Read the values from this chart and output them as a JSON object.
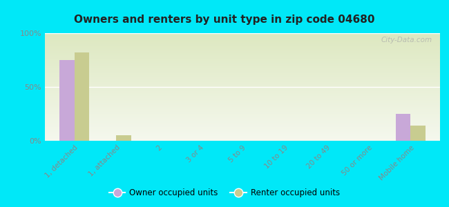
{
  "title": "Owners and renters by unit type in zip code 04680",
  "categories": [
    "1, detached",
    "1, attached",
    "2",
    "3 or 4",
    "5 to 9",
    "10 to 19",
    "20 to 49",
    "50 or more",
    "Mobile home"
  ],
  "owner_values": [
    75,
    0,
    0,
    0,
    0,
    0,
    0,
    0,
    25
  ],
  "renter_values": [
    82,
    5,
    0,
    0,
    0,
    0,
    0,
    0,
    14
  ],
  "owner_color": "#c8a8d8",
  "renter_color": "#c8cc90",
  "background_outer": "#00e8f8",
  "background_plot_top": "#dde8c0",
  "background_plot_bottom": "#f5f8ee",
  "yticks": [
    0,
    50,
    100
  ],
  "ylim": [
    0,
    100
  ],
  "bar_width": 0.35,
  "legend_owner": "Owner occupied units",
  "legend_renter": "Renter occupied units",
  "watermark": "City-Data.com",
  "tick_color": "#888888",
  "grid_color": "#ffffff",
  "title_color": "#222222"
}
